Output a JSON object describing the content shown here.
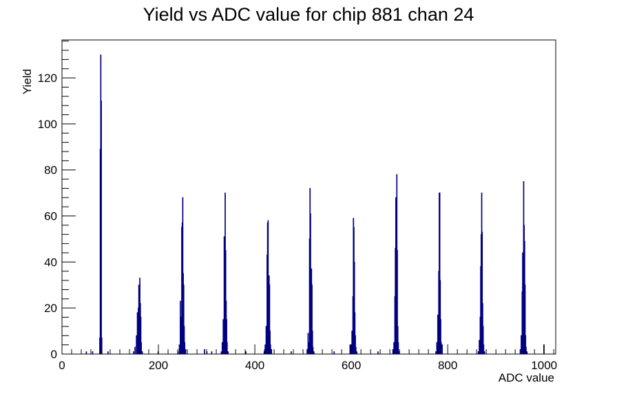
{
  "chart_data": {
    "type": "histogram",
    "title": "Yield vs ADC value for chip 881 chan 24",
    "xlabel": "ADC value",
    "ylabel": "Yield",
    "xlim": [
      0,
      1024
    ],
    "ylim": [
      0,
      136.5
    ],
    "x_ticks": [
      0,
      200,
      400,
      600,
      800,
      1000
    ],
    "y_ticks": [
      0,
      20,
      40,
      60,
      80,
      100,
      120
    ],
    "bin_width": 1,
    "line_color": "#000080",
    "points": [
      {
        "x": 50,
        "y": 1
      },
      {
        "x": 63,
        "y": 1
      },
      {
        "x": 78,
        "y": 7
      },
      {
        "x": 79,
        "y": 89
      },
      {
        "x": 80,
        "y": 130
      },
      {
        "x": 81,
        "y": 110
      },
      {
        "x": 82,
        "y": 7
      },
      {
        "x": 95,
        "y": 1
      },
      {
        "x": 148,
        "y": 1
      },
      {
        "x": 151,
        "y": 3
      },
      {
        "x": 154,
        "y": 8
      },
      {
        "x": 156,
        "y": 18
      },
      {
        "x": 158,
        "y": 20
      },
      {
        "x": 159,
        "y": 30
      },
      {
        "x": 160,
        "y": 25
      },
      {
        "x": 161,
        "y": 33
      },
      {
        "x": 162,
        "y": 22
      },
      {
        "x": 163,
        "y": 16
      },
      {
        "x": 164,
        "y": 5
      },
      {
        "x": 166,
        "y": 1
      },
      {
        "x": 199,
        "y": 1
      },
      {
        "x": 240,
        "y": 1
      },
      {
        "x": 243,
        "y": 4
      },
      {
        "x": 245,
        "y": 23
      },
      {
        "x": 247,
        "y": 16
      },
      {
        "x": 248,
        "y": 55
      },
      {
        "x": 249,
        "y": 57
      },
      {
        "x": 250,
        "y": 68
      },
      {
        "x": 251,
        "y": 35
      },
      {
        "x": 252,
        "y": 30
      },
      {
        "x": 253,
        "y": 12
      },
      {
        "x": 254,
        "y": 5
      },
      {
        "x": 256,
        "y": 2
      },
      {
        "x": 295,
        "y": 2
      },
      {
        "x": 300,
        "y": 1
      },
      {
        "x": 310,
        "y": 1
      },
      {
        "x": 330,
        "y": 1
      },
      {
        "x": 332,
        "y": 5
      },
      {
        "x": 334,
        "y": 15
      },
      {
        "x": 336,
        "y": 51
      },
      {
        "x": 337,
        "y": 44
      },
      {
        "x": 338,
        "y": 70
      },
      {
        "x": 339,
        "y": 45
      },
      {
        "x": 340,
        "y": 23
      },
      {
        "x": 341,
        "y": 15
      },
      {
        "x": 342,
        "y": 5
      },
      {
        "x": 344,
        "y": 1
      },
      {
        "x": 380,
        "y": 1
      },
      {
        "x": 381,
        "y": 1
      },
      {
        "x": 419,
        "y": 1
      },
      {
        "x": 421,
        "y": 4
      },
      {
        "x": 423,
        "y": 12
      },
      {
        "x": 425,
        "y": 43
      },
      {
        "x": 426,
        "y": 57
      },
      {
        "x": 427,
        "y": 58
      },
      {
        "x": 428,
        "y": 26
      },
      {
        "x": 429,
        "y": 34
      },
      {
        "x": 430,
        "y": 30
      },
      {
        "x": 431,
        "y": 10
      },
      {
        "x": 432,
        "y": 4
      },
      {
        "x": 434,
        "y": 2
      },
      {
        "x": 475,
        "y": 1
      },
      {
        "x": 508,
        "y": 2
      },
      {
        "x": 510,
        "y": 9
      },
      {
        "x": 512,
        "y": 5
      },
      {
        "x": 513,
        "y": 50
      },
      {
        "x": 514,
        "y": 72
      },
      {
        "x": 515,
        "y": 61
      },
      {
        "x": 516,
        "y": 34
      },
      {
        "x": 517,
        "y": 37
      },
      {
        "x": 518,
        "y": 30
      },
      {
        "x": 519,
        "y": 10
      },
      {
        "x": 520,
        "y": 3
      },
      {
        "x": 522,
        "y": 1
      },
      {
        "x": 564,
        "y": 1
      },
      {
        "x": 597,
        "y": 4
      },
      {
        "x": 599,
        "y": 4
      },
      {
        "x": 601,
        "y": 10
      },
      {
        "x": 603,
        "y": 25
      },
      {
        "x": 604,
        "y": 59
      },
      {
        "x": 605,
        "y": 55
      },
      {
        "x": 606,
        "y": 40
      },
      {
        "x": 607,
        "y": 18
      },
      {
        "x": 608,
        "y": 8
      },
      {
        "x": 609,
        "y": 3
      },
      {
        "x": 611,
        "y": 1
      },
      {
        "x": 655,
        "y": 1
      },
      {
        "x": 686,
        "y": 2
      },
      {
        "x": 688,
        "y": 5
      },
      {
        "x": 689,
        "y": 2
      },
      {
        "x": 690,
        "y": 25
      },
      {
        "x": 691,
        "y": 46
      },
      {
        "x": 692,
        "y": 68
      },
      {
        "x": 693,
        "y": 36
      },
      {
        "x": 694,
        "y": 78
      },
      {
        "x": 695,
        "y": 45
      },
      {
        "x": 696,
        "y": 12
      },
      {
        "x": 697,
        "y": 5
      },
      {
        "x": 699,
        "y": 1
      },
      {
        "x": 775,
        "y": 1
      },
      {
        "x": 777,
        "y": 5
      },
      {
        "x": 779,
        "y": 17
      },
      {
        "x": 781,
        "y": 36
      },
      {
        "x": 782,
        "y": 70
      },
      {
        "x": 783,
        "y": 70
      },
      {
        "x": 784,
        "y": 32
      },
      {
        "x": 785,
        "y": 15
      },
      {
        "x": 786,
        "y": 5
      },
      {
        "x": 788,
        "y": 4
      },
      {
        "x": 863,
        "y": 1
      },
      {
        "x": 865,
        "y": 6
      },
      {
        "x": 867,
        "y": 16
      },
      {
        "x": 868,
        "y": 38
      },
      {
        "x": 869,
        "y": 52
      },
      {
        "x": 870,
        "y": 70
      },
      {
        "x": 871,
        "y": 53
      },
      {
        "x": 872,
        "y": 22
      },
      {
        "x": 873,
        "y": 12
      },
      {
        "x": 874,
        "y": 4
      },
      {
        "x": 876,
        "y": 1
      },
      {
        "x": 950,
        "y": 2
      },
      {
        "x": 952,
        "y": 8
      },
      {
        "x": 954,
        "y": 27
      },
      {
        "x": 955,
        "y": 44
      },
      {
        "x": 956,
        "y": 38
      },
      {
        "x": 957,
        "y": 75
      },
      {
        "x": 958,
        "y": 56
      },
      {
        "x": 959,
        "y": 49
      },
      {
        "x": 960,
        "y": 30
      },
      {
        "x": 961,
        "y": 8
      },
      {
        "x": 962,
        "y": 3
      },
      {
        "x": 964,
        "y": 1
      },
      {
        "x": 999,
        "y": 4
      }
    ]
  }
}
